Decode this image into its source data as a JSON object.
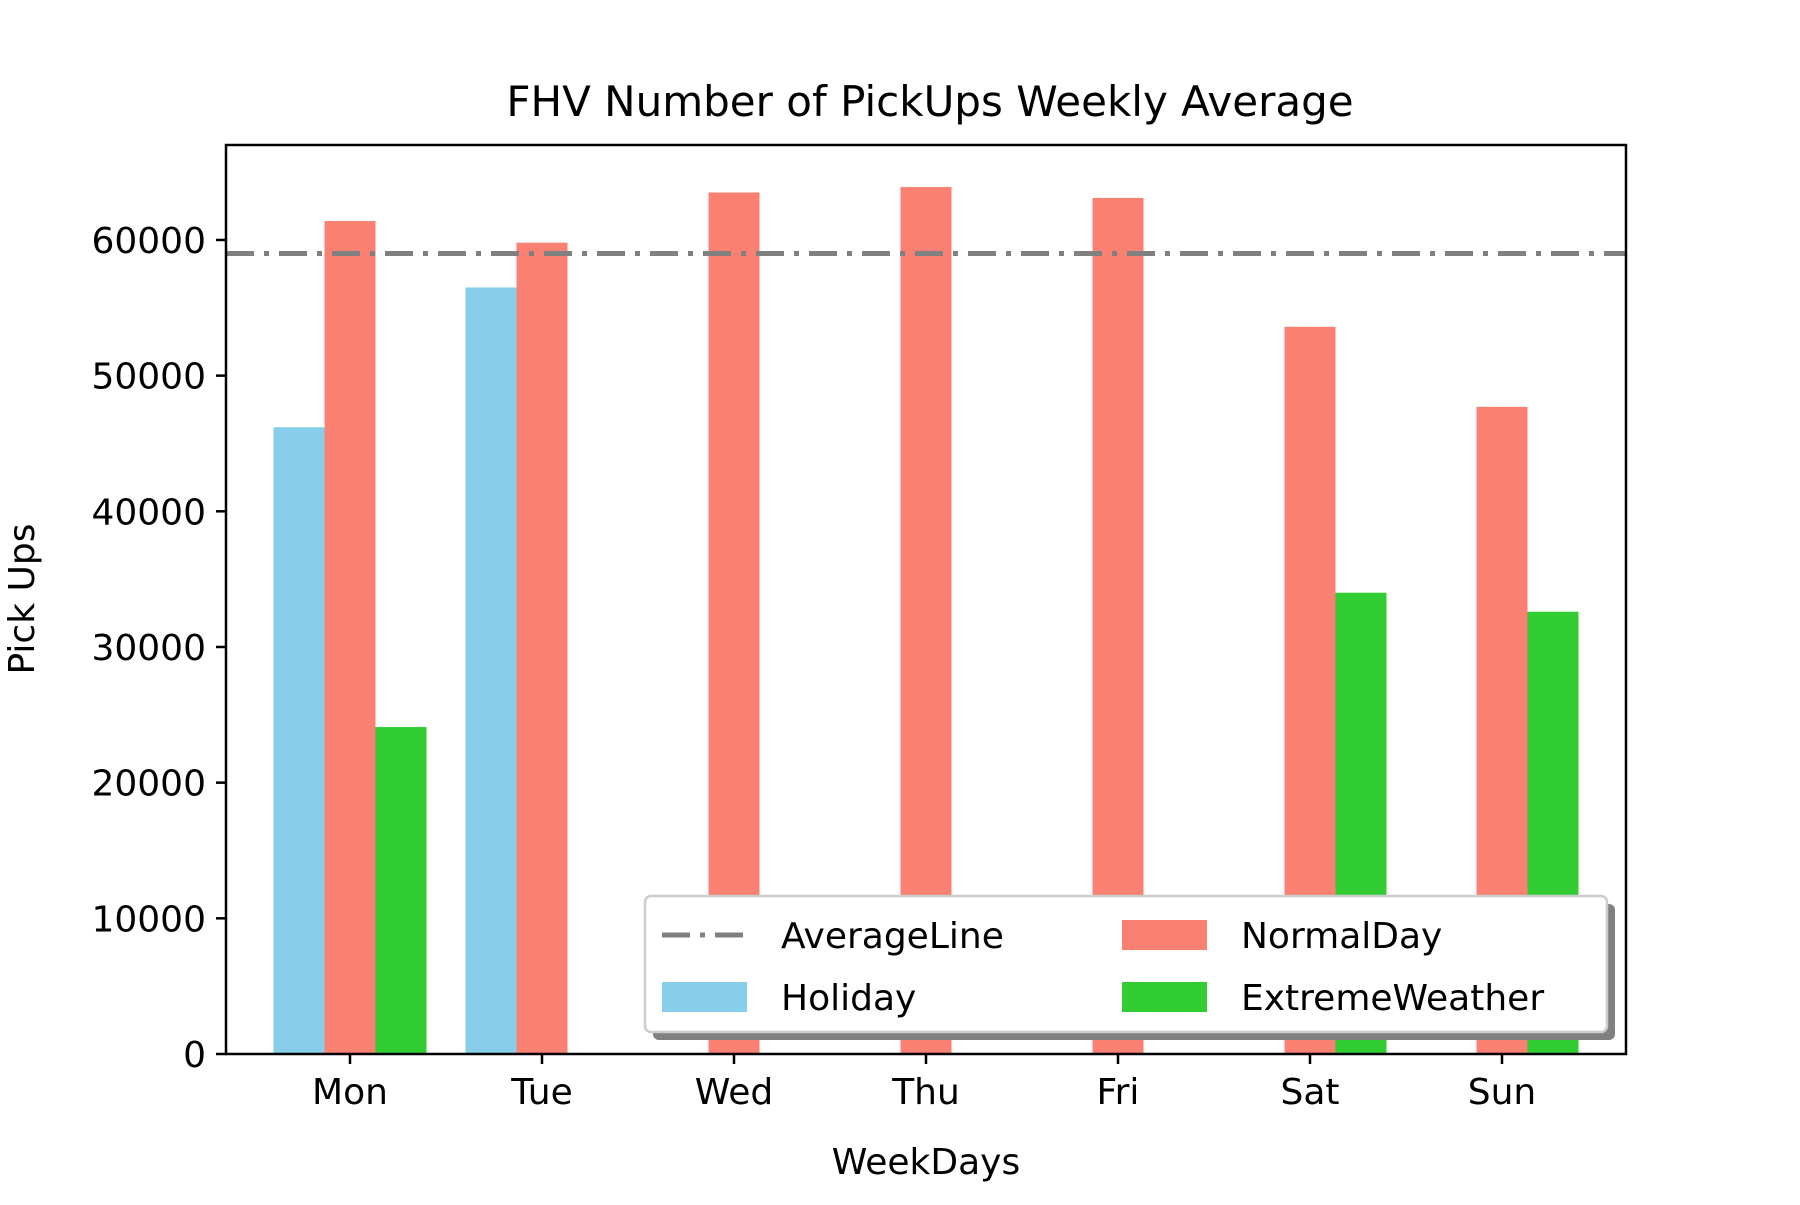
{
  "chart_data": {
    "type": "bar",
    "title": "FHV Number of PickUps Weekly Average",
    "xlabel": "WeekDays",
    "ylabel": "Pick Ups",
    "ylim": [
      0,
      67000
    ],
    "yticks": [
      0,
      10000,
      20000,
      30000,
      40000,
      50000,
      60000
    ],
    "grid": false,
    "legend_placement": "lower-right",
    "categories": [
      "Mon",
      "Tue",
      "Wed",
      "Thu",
      "Fri",
      "Sat",
      "Sun"
    ],
    "series": [
      {
        "name": "Holiday",
        "color": "#87CEEB",
        "values": [
          46200,
          56500,
          null,
          null,
          null,
          null,
          null
        ]
      },
      {
        "name": "NormalDay",
        "color": "#FA8072",
        "values": [
          61400,
          59800,
          63500,
          63900,
          63100,
          53600,
          47700
        ]
      },
      {
        "name": "ExtremeWeather",
        "color": "#32CD32",
        "values": [
          24100,
          null,
          null,
          null,
          null,
          34000,
          32600
        ]
      }
    ],
    "average_line": {
      "name": "AverageLine",
      "value": 59000,
      "color": "#808080",
      "style": "dash-dot"
    }
  }
}
